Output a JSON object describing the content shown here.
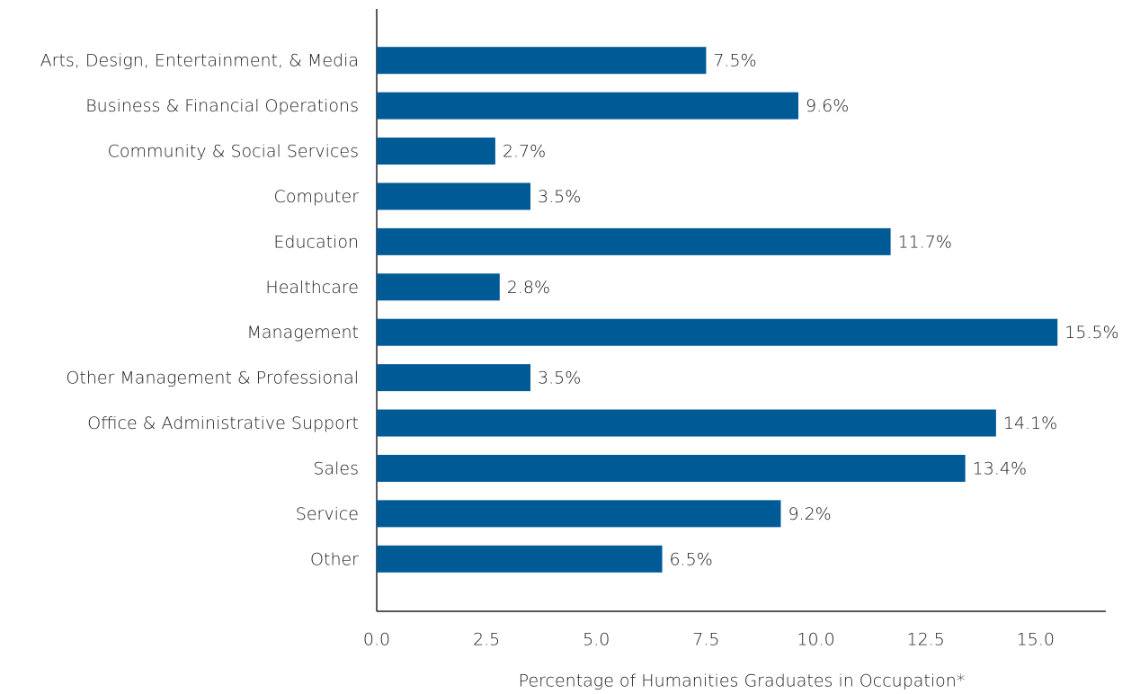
{
  "chart_data": {
    "type": "barh",
    "xlabel": "Percentage of Humanities Graduates in Occupation*",
    "categories": [
      "Arts, Design, Entertainment, & Media",
      "Business & Financial Operations",
      "Community & Social Services",
      "Computer",
      "Education",
      "Healthcare",
      "Management",
      "Other Management & Professional",
      "Office & Administrative Support",
      "Sales",
      "Service",
      "Other"
    ],
    "values": [
      7.5,
      9.6,
      2.7,
      3.5,
      11.7,
      2.8,
      15.5,
      3.5,
      14.1,
      13.4,
      9.2,
      6.5
    ],
    "value_labels": [
      "7.5%",
      "9.6%",
      "2.7%",
      "3.5%",
      "11.7%",
      "2.8%",
      "15.5%",
      "3.5%",
      "14.1%",
      "13.4%",
      "9.2%",
      "6.5%"
    ],
    "color": "#005a96",
    "xlim": [
      0,
      16.6
    ],
    "xticks": [
      {
        "value": 0,
        "label": "0.0"
      },
      2.5,
      {
        "value": 5,
        "label": "5.0"
      },
      7.5,
      {
        "value": 10,
        "label": "10.0"
      },
      12.5,
      {
        "value": 15,
        "label": "15.0"
      }
    ],
    "grid": false
  }
}
